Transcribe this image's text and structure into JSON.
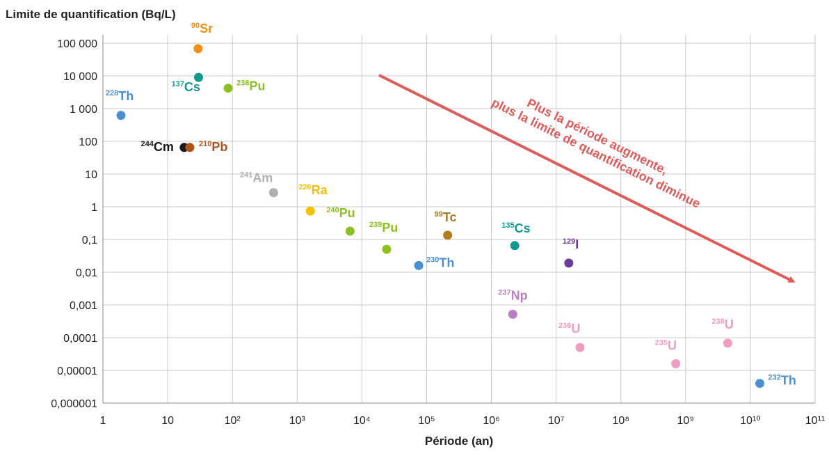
{
  "chart_data": {
    "type": "scatter",
    "title": "Limite de quantification (Bq/L)",
    "x_label": "Période (an)",
    "log_x": true,
    "log_y": true,
    "grid": true,
    "xlim": [
      1,
      100000000000
    ],
    "ylim": [
      1e-06,
      100000
    ],
    "xticks": [
      1,
      10,
      {
        "value": 100,
        "label": "10²"
      },
      {
        "value": 1000,
        "label": "10³"
      },
      {
        "value": 10000,
        "label": "10⁴"
      },
      {
        "value": 100000,
        "label": "10⁵"
      },
      {
        "value": 1000000,
        "label": "10⁶"
      },
      {
        "value": 10000000,
        "label": "10⁷"
      },
      {
        "value": 100000000,
        "label": "10⁸"
      },
      {
        "value": 1000000000,
        "label": "10⁹"
      },
      {
        "value": 10000000000,
        "label": "10¹⁰"
      },
      {
        "value": 100000000000,
        "label": "10¹¹"
      }
    ],
    "yticks": [
      {
        "value": 100000,
        "label": "100 000"
      },
      {
        "value": 10000,
        "label": "10 000"
      },
      {
        "value": 1000,
        "label": "1 000"
      },
      100,
      10,
      1,
      {
        "value": 0.1,
        "label": "0,1"
      },
      {
        "value": 0.01,
        "label": "0,01"
      },
      {
        "value": 0.001,
        "label": "0,001"
      },
      {
        "value": 0.0001,
        "label": "0,0001"
      },
      {
        "value": 1e-05,
        "label": "0,00001"
      },
      {
        "value": 1e-06,
        "label": "0,000001"
      }
    ],
    "points": [
      {
        "mass": "228",
        "symbol": "Th",
        "color": "#4a90d0",
        "x": 1.9,
        "y": 620
      },
      {
        "mass": "90",
        "symbol": "Sr",
        "color": "#f0901a",
        "x": 29.5,
        "y": 68000
      },
      {
        "mass": "137",
        "symbol": "Cs",
        "color": "#139a8e",
        "x": 30,
        "y": 9000
      },
      {
        "mass": "238",
        "symbol": "Pu",
        "color": "#8dc021",
        "x": 86,
        "y": 4200
      },
      {
        "mass": "244",
        "symbol": "Cm",
        "color": "#1a1a1a",
        "x": 18,
        "y": 65
      },
      {
        "mass": "210",
        "symbol": "Pb",
        "color": "#b2521a",
        "x": 22,
        "y": 65
      },
      {
        "mass": "241",
        "symbol": "Am",
        "color": "#b0b0b0",
        "x": 432,
        "y": 2.7
      },
      {
        "mass": "226",
        "symbol": "Ra",
        "color": "#f5c000",
        "x": 1600,
        "y": 0.74
      },
      {
        "mass": "240",
        "symbol": "Pu",
        "color": "#8dc021",
        "x": 6560,
        "y": 0.18
      },
      {
        "mass": "239",
        "symbol": "Pu",
        "color": "#8dc021",
        "x": 24100,
        "y": 0.05
      },
      {
        "mass": "230",
        "symbol": "Th",
        "color": "#4a90d0",
        "x": 75400,
        "y": 0.016
      },
      {
        "mass": "99",
        "symbol": "Tc",
        "color": "#b07d1a",
        "x": 211000,
        "y": 0.135
      },
      {
        "mass": "135",
        "symbol": "Cs",
        "color": "#139a8e",
        "x": 2300000,
        "y": 0.065
      },
      {
        "mass": "129",
        "symbol": "I",
        "color": "#6a3d9a",
        "x": 15700000,
        "y": 0.019
      },
      {
        "mass": "237",
        "symbol": "Np",
        "color": "#b77fbf",
        "x": 2140000,
        "y": 0.00052
      },
      {
        "mass": "236",
        "symbol": "U",
        "color": "#f29cc3",
        "x": 23400000,
        "y": 5e-05
      },
      {
        "mass": "235",
        "symbol": "U",
        "color": "#f29cc3",
        "x": 704000000,
        "y": 1.6e-05
      },
      {
        "mass": "238",
        "symbol": "U",
        "color": "#f29cc3",
        "x": 4470000000,
        "y": 6.8e-05
      },
      {
        "mass": "232",
        "symbol": "Th",
        "color": "#4a90d0",
        "x": 14000000000,
        "y": 4e-06
      }
    ],
    "annotation": {
      "lines": [
        "Plus la période augmente,",
        "plus la limite de quantification diminue"
      ],
      "color": "#e05a5a"
    }
  }
}
